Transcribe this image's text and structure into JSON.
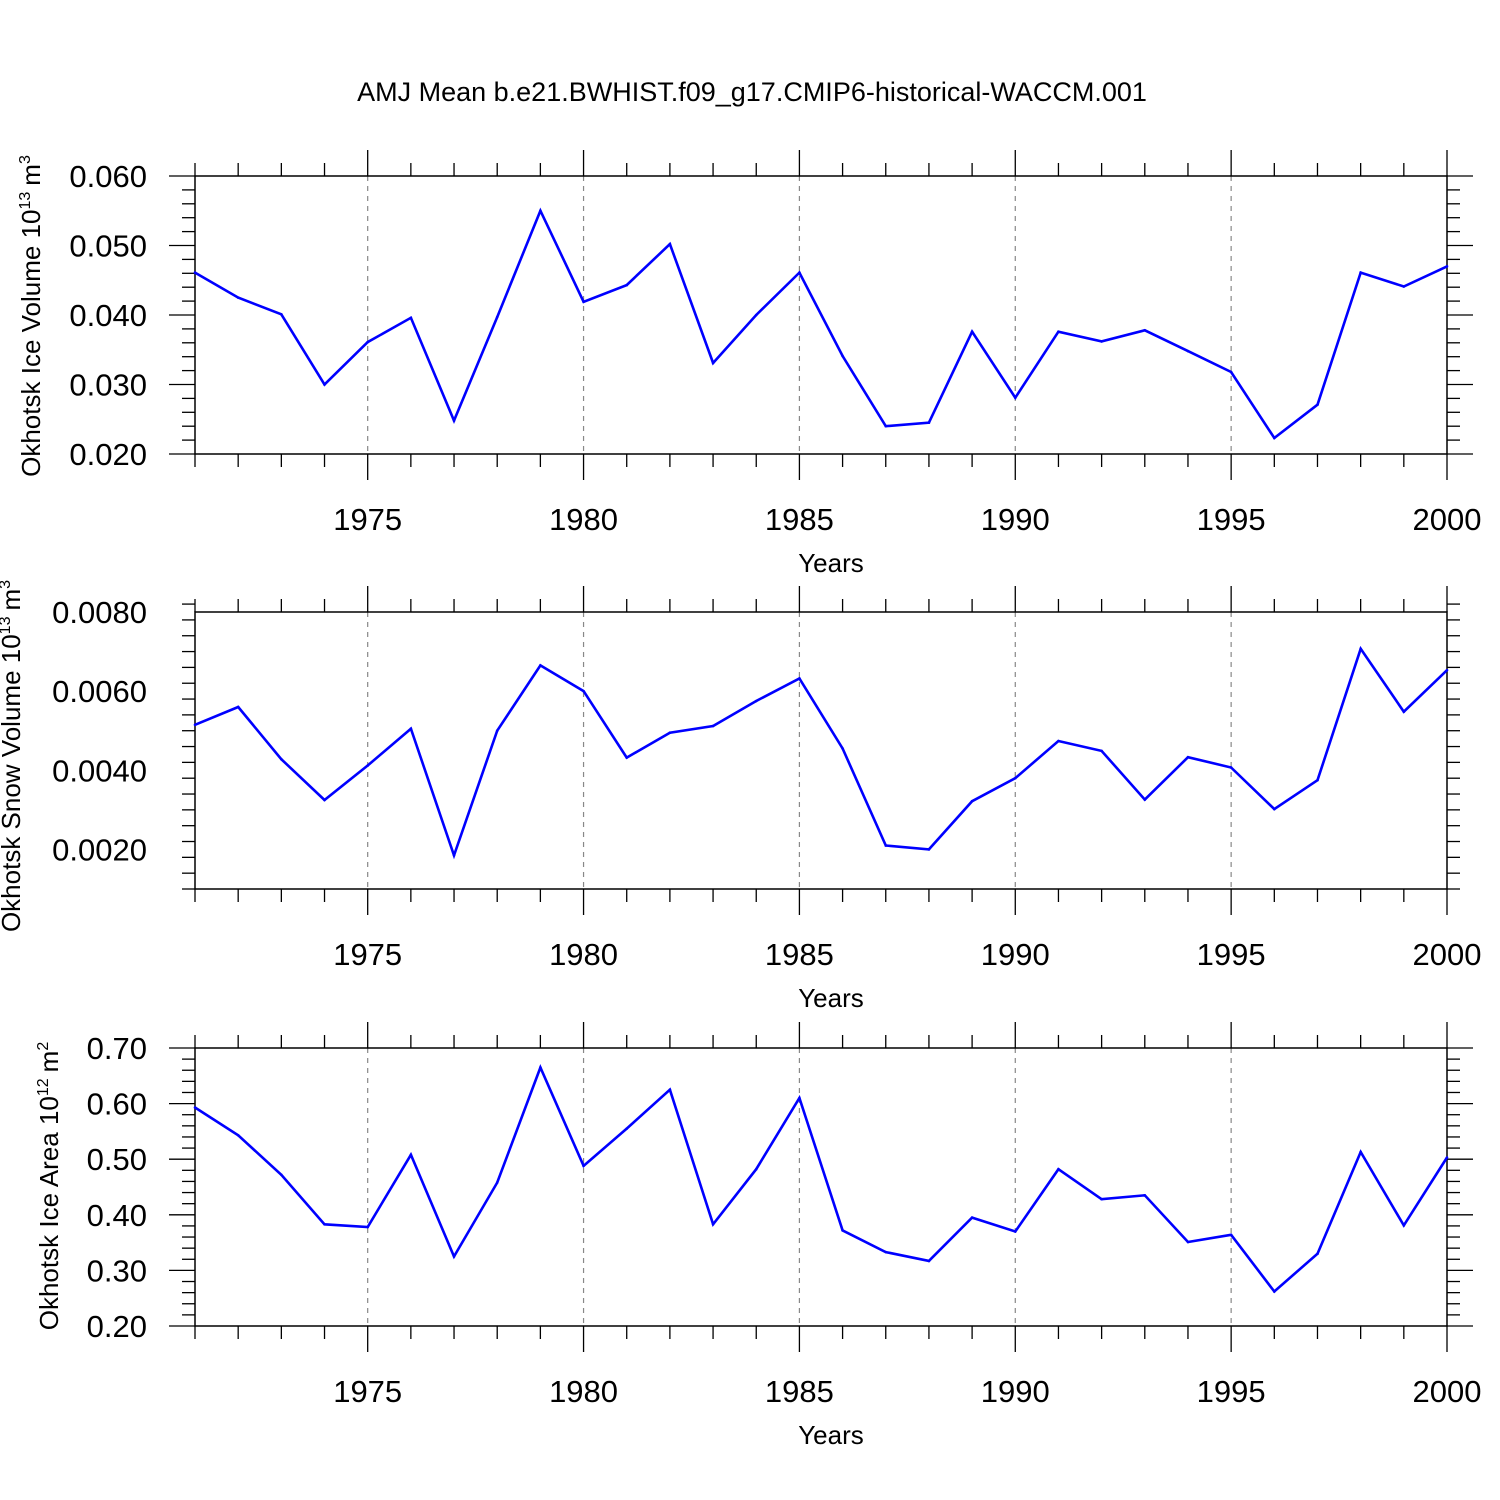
{
  "title": "AMJ Mean b.e21.BWHIST.f09_g17.CMIP6-historical-WACCM.001",
  "chart_data": [
    {
      "type": "line",
      "title": "",
      "xlabel": "Years",
      "ylabel_main": "Okhotsk Ice Volume 10",
      "ylabel_exp": "13",
      "ylabel_unit": "m",
      "ylabel_unit_exp": "3",
      "xlim": [
        1971,
        2000
      ],
      "ylim": [
        0.02,
        0.06
      ],
      "xticks": [
        1975,
        1980,
        1985,
        1990,
        1995,
        2000
      ],
      "xtick_labels": [
        "1975",
        "1980",
        "1985",
        "1990",
        "1995",
        "2000"
      ],
      "yticks": [
        0.02,
        0.03,
        0.04,
        0.05,
        0.06
      ],
      "ytick_labels": [
        "0.020",
        "0.030",
        "0.040",
        "0.050",
        "0.060"
      ],
      "grid": "vertical dashed at major x ticks",
      "color": "#0000ff",
      "x": [
        1971,
        1972,
        1973,
        1974,
        1975,
        1976,
        1977,
        1978,
        1979,
        1980,
        1981,
        1982,
        1983,
        1984,
        1985,
        1986,
        1987,
        1988,
        1989,
        1990,
        1991,
        1992,
        1993,
        1994,
        1995,
        1996,
        1997,
        1998,
        1999,
        2000
      ],
      "values": [
        0.0461,
        0.0425,
        0.0401,
        0.03,
        0.0361,
        0.0396,
        0.0248,
        0.0397,
        0.055,
        0.0419,
        0.0443,
        0.0502,
        0.0331,
        0.04,
        0.0461,
        0.0341,
        0.024,
        0.0245,
        0.0376,
        0.0281,
        0.0376,
        0.0362,
        0.0378,
        0.0348,
        0.0318,
        0.0223,
        0.0271,
        0.0461,
        0.0441,
        0.047
      ]
    },
    {
      "type": "line",
      "title": "",
      "xlabel": "Years",
      "ylabel_main": "Okhotsk Snow Volume 10",
      "ylabel_exp": "13",
      "ylabel_unit": "m",
      "ylabel_unit_exp": "3",
      "xlim": [
        1971,
        2000
      ],
      "ylim": [
        0.001,
        0.008
      ],
      "xticks": [
        1975,
        1980,
        1985,
        1990,
        1995,
        2000
      ],
      "xtick_labels": [
        "1975",
        "1980",
        "1985",
        "1990",
        "1995",
        "2000"
      ],
      "yticks": [
        0.002,
        0.004,
        0.006,
        0.008
      ],
      "ytick_labels": [
        "0.0020",
        "0.0040",
        "0.0060",
        "0.0080"
      ],
      "grid": "vertical dashed at major x ticks",
      "color": "#0000ff",
      "x": [
        1971,
        1972,
        1973,
        1974,
        1975,
        1976,
        1977,
        1978,
        1979,
        1980,
        1981,
        1982,
        1983,
        1984,
        1985,
        1986,
        1987,
        1988,
        1989,
        1990,
        1991,
        1992,
        1993,
        1994,
        1995,
        1996,
        1997,
        1998,
        1999,
        2000
      ],
      "values": [
        0.00515,
        0.0056,
        0.00428,
        0.00325,
        0.00412,
        0.00505,
        0.00185,
        0.005,
        0.00665,
        0.006,
        0.00432,
        0.00495,
        0.00512,
        0.00575,
        0.00632,
        0.00455,
        0.0021,
        0.002,
        0.00322,
        0.0038,
        0.00474,
        0.00449,
        0.00326,
        0.00433,
        0.00407,
        0.00302,
        0.00375,
        0.00707,
        0.00548,
        0.00653
      ]
    },
    {
      "type": "line",
      "title": "",
      "xlabel": "Years",
      "ylabel_main": "Okhotsk Ice Area 10",
      "ylabel_exp": "12",
      "ylabel_unit": "m",
      "ylabel_unit_exp": "2",
      "xlim": [
        1971,
        2000
      ],
      "ylim": [
        0.2,
        0.7
      ],
      "xticks": [
        1975,
        1980,
        1985,
        1990,
        1995,
        2000
      ],
      "xtick_labels": [
        "1975",
        "1980",
        "1985",
        "1990",
        "1995",
        "2000"
      ],
      "yticks": [
        0.2,
        0.3,
        0.4,
        0.5,
        0.6,
        0.7
      ],
      "ytick_labels": [
        "0.20",
        "0.30",
        "0.40",
        "0.50",
        "0.60",
        "0.70"
      ],
      "grid": "vertical dashed at major x ticks",
      "color": "#0000ff",
      "x": [
        1971,
        1972,
        1973,
        1974,
        1975,
        1976,
        1977,
        1978,
        1979,
        1980,
        1981,
        1982,
        1983,
        1984,
        1985,
        1986,
        1987,
        1988,
        1989,
        1990,
        1991,
        1992,
        1993,
        1994,
        1995,
        1996,
        1997,
        1998,
        1999,
        2000
      ],
      "values": [
        0.593,
        0.543,
        0.472,
        0.383,
        0.378,
        0.508,
        0.325,
        0.458,
        0.665,
        0.488,
        0.555,
        0.625,
        0.383,
        0.482,
        0.61,
        0.372,
        0.333,
        0.317,
        0.395,
        0.37,
        0.482,
        0.428,
        0.435,
        0.351,
        0.364,
        0.262,
        0.33,
        0.513,
        0.381,
        0.503
      ]
    }
  ]
}
